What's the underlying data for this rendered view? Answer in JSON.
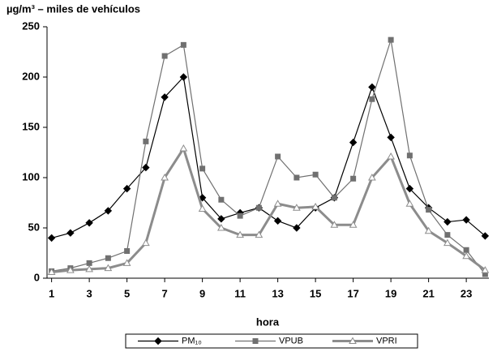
{
  "chart_data": {
    "type": "line",
    "title": "µg/m³ – miles de vehículos",
    "x_label": "hora",
    "x": [
      1,
      2,
      3,
      4,
      5,
      6,
      7,
      8,
      9,
      10,
      11,
      12,
      13,
      14,
      15,
      16,
      17,
      18,
      19,
      20,
      21,
      22,
      23,
      24
    ],
    "xlim": [
      0.5,
      24.5
    ],
    "xticks": [
      1,
      3,
      5,
      7,
      9,
      11,
      13,
      15,
      17,
      19,
      21,
      23
    ],
    "ylim": [
      0,
      250
    ],
    "yticks": [
      0,
      50,
      100,
      150,
      200,
      250
    ],
    "legend": "bottom",
    "series": [
      {
        "name": "PM₁₀",
        "color": "#000000",
        "marker": "diamond",
        "values": [
          40,
          45,
          55,
          67,
          89,
          110,
          180,
          200,
          80,
          59,
          65,
          70,
          57,
          50,
          70,
          80,
          135,
          190,
          140,
          89,
          70,
          56,
          58,
          42
        ]
      },
      {
        "name": "VPUB",
        "color": "#707070",
        "marker": "square",
        "values": [
          7,
          10,
          15,
          20,
          27,
          136,
          221,
          232,
          109,
          78,
          62,
          70,
          121,
          100,
          103,
          80,
          99,
          178,
          237,
          122,
          68,
          43,
          28,
          4
        ]
      },
      {
        "name": "VPRI",
        "color": "#8c8c8c",
        "marker": "triangle",
        "values": [
          6,
          8,
          9,
          10,
          15,
          35,
          100,
          129,
          69,
          50,
          43,
          43,
          74,
          70,
          71,
          53,
          53,
          100,
          121,
          74,
          47,
          35,
          22,
          8
        ]
      }
    ]
  }
}
